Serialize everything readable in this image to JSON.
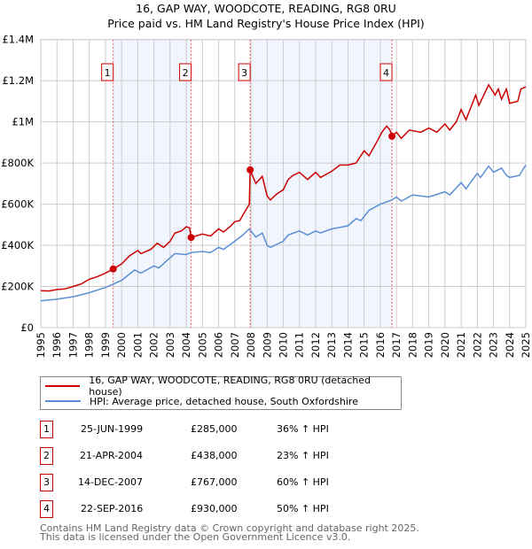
{
  "header": {
    "title": "16, GAP WAY, WOODCOTE, READING, RG8 0RU",
    "subtitle": "Price paid vs. HM Land Registry's House Price Index (HPI)"
  },
  "chart_data": {
    "type": "line",
    "title": "16, GAP WAY, WOODCOTE, READING, RG8 0RU",
    "subtitle": "Price paid vs. HM Land Registry's House Price Index (HPI)",
    "xlim": [
      1995,
      2025
    ],
    "ylim": [
      0,
      1400000
    ],
    "x_ticks": [
      "1995",
      "1996",
      "1997",
      "1998",
      "1999",
      "2000",
      "2001",
      "2002",
      "2003",
      "2004",
      "2005",
      "2006",
      "2007",
      "2008",
      "2009",
      "2010",
      "2011",
      "2012",
      "2013",
      "2014",
      "2015",
      "2016",
      "2017",
      "2018",
      "2019",
      "2020",
      "2021",
      "2022",
      "2023",
      "2024",
      "2025"
    ],
    "y_ticks": [
      {
        "v": 0,
        "label": "£0"
      },
      {
        "v": 200000,
        "label": "£200K"
      },
      {
        "v": 400000,
        "label": "£400K"
      },
      {
        "v": 600000,
        "label": "£600K"
      },
      {
        "v": 800000,
        "label": "£800K"
      },
      {
        "v": 1000000,
        "label": "£1M"
      },
      {
        "v": 1200000,
        "label": "£1.2M"
      },
      {
        "v": 1400000,
        "label": "£1.4M"
      }
    ],
    "grid": true,
    "shaded_ranges": [
      [
        1999.48,
        2004.3
      ],
      [
        2007.95,
        2016.72
      ]
    ],
    "series": [
      {
        "name": "16, GAP WAY, WOODCOTE, READING, RG8 0RU (detached house)",
        "color": "#cc0000",
        "x": [
          1995,
          1995.5,
          1996,
          1996.5,
          1997,
          1997.5,
          1998,
          1998.5,
          1999,
          1999.48,
          2000,
          2000.5,
          2001,
          2001.2,
          2001.8,
          2002.2,
          2002.6,
          2003,
          2003.3,
          2003.7,
          2004,
          2004.2,
          2004.3,
          2005,
          2005.5,
          2006,
          2006.3,
          2006.7,
          2007,
          2007.3,
          2007.6,
          2007.9,
          2007.95,
          2008.3,
          2008.7,
          2009,
          2009.2,
          2009.6,
          2010,
          2010.3,
          2010.6,
          2011,
          2011.5,
          2012,
          2012.3,
          2013,
          2013.5,
          2014,
          2014.5,
          2015,
          2015.3,
          2015.8,
          2016.1,
          2016.4,
          2016.6,
          2016.72,
          2017,
          2017.3,
          2017.8,
          2018.5,
          2019,
          2019.5,
          2020,
          2020.3,
          2020.7,
          2021,
          2021.3,
          2021.9,
          2022.1,
          2022.7,
          2023.1,
          2023.3,
          2023.5,
          2023.8,
          2024,
          2024.5,
          2024.7,
          2025
        ],
        "y": [
          180000,
          178000,
          185000,
          188000,
          200000,
          212000,
          235000,
          248000,
          265000,
          285000,
          310000,
          350000,
          375000,
          360000,
          380000,
          410000,
          390000,
          420000,
          460000,
          470000,
          490000,
          485000,
          438000,
          455000,
          445000,
          480000,
          465000,
          490000,
          515000,
          520000,
          560000,
          600000,
          767000,
          700000,
          735000,
          640000,
          620000,
          650000,
          670000,
          720000,
          740000,
          755000,
          720000,
          755000,
          730000,
          760000,
          790000,
          790000,
          800000,
          860000,
          835000,
          905000,
          950000,
          980000,
          960000,
          930000,
          950000,
          920000,
          960000,
          950000,
          970000,
          950000,
          990000,
          960000,
          1000000,
          1060000,
          1010000,
          1130000,
          1080000,
          1180000,
          1130000,
          1160000,
          1110000,
          1160000,
          1090000,
          1100000,
          1160000,
          1170000
        ]
      },
      {
        "name": "HPI: Average price, detached house, South Oxfordshire",
        "color": "#5b8fd4",
        "x": [
          1995,
          1996,
          1997,
          1998,
          1999,
          2000,
          2000.8,
          2001.2,
          2002,
          2002.3,
          2003,
          2003.3,
          2004,
          2004.3,
          2005,
          2005.5,
          2006,
          2006.3,
          2007,
          2007.5,
          2007.9,
          2008.3,
          2008.7,
          2009,
          2009.2,
          2010,
          2010.3,
          2011,
          2011.5,
          2012,
          2012.3,
          2013,
          2014,
          2014.5,
          2014.8,
          2015.3,
          2016,
          2016.7,
          2017,
          2017.3,
          2018,
          2019,
          2020,
          2020.3,
          2021,
          2021.3,
          2022,
          2022.2,
          2022.7,
          2023,
          2023.5,
          2023.8,
          2024,
          2024.6,
          2025
        ],
        "y": [
          130000,
          138000,
          150000,
          170000,
          195000,
          230000,
          280000,
          265000,
          300000,
          290000,
          340000,
          360000,
          355000,
          365000,
          370000,
          365000,
          390000,
          380000,
          420000,
          450000,
          480000,
          440000,
          460000,
          400000,
          390000,
          420000,
          450000,
          470000,
          450000,
          470000,
          460000,
          480000,
          495000,
          530000,
          520000,
          570000,
          600000,
          620000,
          635000,
          615000,
          645000,
          635000,
          660000,
          645000,
          705000,
          675000,
          750000,
          730000,
          785000,
          755000,
          775000,
          740000,
          730000,
          740000,
          790000
        ]
      }
    ],
    "sales": [
      {
        "n": "1",
        "x": 1999.48,
        "y": 285000
      },
      {
        "n": "2",
        "x": 2004.3,
        "y": 438000
      },
      {
        "n": "3",
        "x": 2007.95,
        "y": 767000
      },
      {
        "n": "4",
        "x": 2016.72,
        "y": 930000
      }
    ]
  },
  "legend": [
    {
      "label": "16, GAP WAY, WOODCOTE, READING, RG8 0RU (detached house)",
      "color": "#cc0000"
    },
    {
      "label": "HPI: Average price, detached house, South Oxfordshire",
      "color": "#5b8fd4"
    }
  ],
  "table": [
    {
      "n": "1",
      "date": "25-JUN-1999",
      "price": "£285,000",
      "hpi": "36% ↑ HPI"
    },
    {
      "n": "2",
      "date": "21-APR-2004",
      "price": "£438,000",
      "hpi": "23% ↑ HPI"
    },
    {
      "n": "3",
      "date": "14-DEC-2007",
      "price": "£767,000",
      "hpi": "60% ↑ HPI"
    },
    {
      "n": "4",
      "date": "22-SEP-2016",
      "price": "£930,000",
      "hpi": "50% ↑ HPI"
    }
  ],
  "footer": {
    "line1": "Contains HM Land Registry data © Crown copyright and database right 2025.",
    "line2": "This data is licensed under the Open Government Licence v3.0."
  }
}
